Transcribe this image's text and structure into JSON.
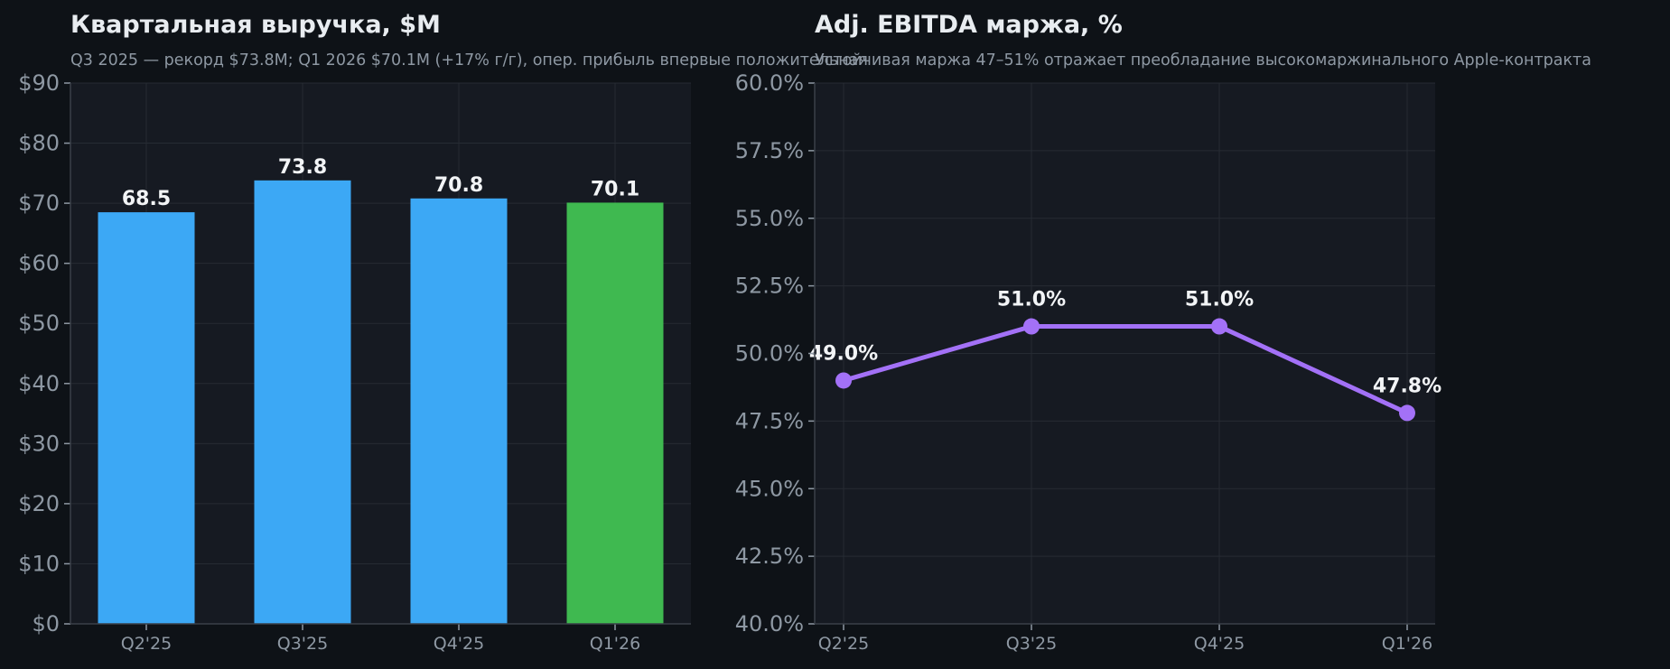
{
  "chart_data": [
    {
      "type": "bar",
      "title": "Квартальная выручка, $M",
      "subtitle": "Q3 2025 — рекорд $73.8M; Q1 2026 $70.1M (+17% г/г), опер. прибыль впервые положительная",
      "categories": [
        "Q2'25",
        "Q3'25",
        "Q4'25",
        "Q1'26"
      ],
      "values": [
        68.5,
        73.8,
        70.8,
        70.1
      ],
      "value_labels": [
        "68.5",
        "73.8",
        "70.8",
        "70.1"
      ],
      "bar_colors": [
        "#3ca8f5",
        "#3ca8f5",
        "#3ca8f5",
        "#3fb950"
      ],
      "ylim": [
        0,
        90
      ],
      "yticks": [
        0,
        10,
        20,
        30,
        40,
        50,
        60,
        70,
        80,
        90
      ],
      "ytick_labels": [
        "$0",
        "$10",
        "$20",
        "$30",
        "$40",
        "$50",
        "$60",
        "$70",
        "$80",
        "$90"
      ],
      "xlabel": "",
      "ylabel": "",
      "grid": true
    },
    {
      "type": "line",
      "title": "Adj. EBITDA маржа, %",
      "subtitle": "Устойчивая маржа 47–51% отражает преобладание высокомаржинального Apple-контракта",
      "categories": [
        "Q2'25",
        "Q3'25",
        "Q4'25",
        "Q1'26"
      ],
      "values": [
        49.0,
        51.0,
        51.0,
        47.8
      ],
      "value_labels": [
        "49.0%",
        "51.0%",
        "51.0%",
        "47.8%"
      ],
      "line_color": "#a371f7",
      "ylim": [
        40,
        60
      ],
      "yticks": [
        40,
        42.5,
        45,
        47.5,
        50,
        52.5,
        55,
        57.5,
        60
      ],
      "ytick_labels": [
        "40.0%",
        "42.5%",
        "45.0%",
        "47.5%",
        "50.0%",
        "52.5%",
        "55.0%",
        "57.5%",
        "60.0%"
      ],
      "xlabel": "",
      "ylabel": "",
      "grid": true
    }
  ]
}
